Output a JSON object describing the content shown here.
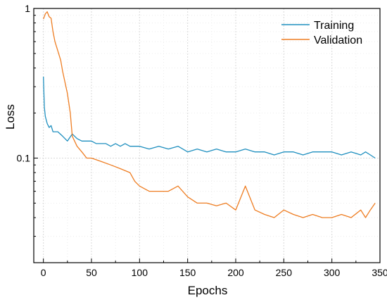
{
  "chart_data": {
    "type": "line",
    "xlabel": "Epochs",
    "ylabel": "Loss",
    "xlim": [
      -10,
      350
    ],
    "ylim": [
      0.02,
      1
    ],
    "yscale": "log",
    "xticks": [
      0,
      50,
      100,
      150,
      200,
      250,
      300,
      350
    ],
    "yticks": [
      0.1,
      1
    ],
    "ytick_labels": [
      "0.1",
      "1"
    ],
    "grid": true,
    "legend_position": "top-right",
    "series": [
      {
        "name": "Training",
        "color": "#1f8fbf",
        "x": [
          0,
          1,
          2,
          4,
          6,
          8,
          10,
          15,
          20,
          25,
          30,
          35,
          40,
          45,
          50,
          55,
          60,
          65,
          70,
          75,
          80,
          85,
          90,
          95,
          100,
          110,
          120,
          130,
          140,
          150,
          160,
          170,
          180,
          190,
          200,
          210,
          220,
          230,
          240,
          250,
          260,
          270,
          280,
          290,
          300,
          310,
          320,
          330,
          335,
          340,
          345
        ],
        "values": [
          0.35,
          0.22,
          0.19,
          0.17,
          0.16,
          0.165,
          0.15,
          0.15,
          0.14,
          0.13,
          0.145,
          0.135,
          0.13,
          0.13,
          0.13,
          0.125,
          0.125,
          0.125,
          0.12,
          0.125,
          0.12,
          0.125,
          0.12,
          0.12,
          0.12,
          0.115,
          0.12,
          0.115,
          0.12,
          0.11,
          0.115,
          0.11,
          0.115,
          0.11,
          0.11,
          0.115,
          0.11,
          0.11,
          0.105,
          0.11,
          0.11,
          0.105,
          0.11,
          0.11,
          0.11,
          0.105,
          0.11,
          0.105,
          0.11,
          0.105,
          0.1
        ]
      },
      {
        "name": "Validation",
        "color": "#ee7d22",
        "x": [
          0,
          2,
          4,
          6,
          8,
          10,
          12,
          15,
          18,
          20,
          25,
          28,
          30,
          35,
          40,
          45,
          50,
          60,
          70,
          80,
          90,
          95,
          100,
          110,
          120,
          130,
          140,
          150,
          160,
          170,
          180,
          190,
          200,
          210,
          220,
          230,
          240,
          250,
          260,
          270,
          280,
          290,
          300,
          310,
          320,
          330,
          335,
          340,
          345
        ],
        "values": [
          0.85,
          0.92,
          0.95,
          0.88,
          0.86,
          0.7,
          0.6,
          0.52,
          0.45,
          0.38,
          0.27,
          0.2,
          0.14,
          0.12,
          0.11,
          0.1,
          0.1,
          0.095,
          0.09,
          0.085,
          0.08,
          0.07,
          0.065,
          0.06,
          0.06,
          0.06,
          0.065,
          0.055,
          0.05,
          0.05,
          0.048,
          0.05,
          0.045,
          0.065,
          0.045,
          0.042,
          0.04,
          0.045,
          0.042,
          0.04,
          0.042,
          0.04,
          0.04,
          0.042,
          0.04,
          0.045,
          0.04,
          0.045,
          0.05
        ]
      }
    ]
  }
}
